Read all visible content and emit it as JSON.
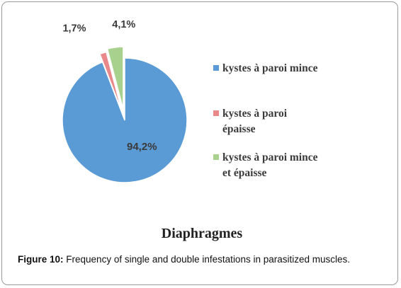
{
  "chart_data": {
    "type": "pie",
    "title": "Diaphragmes",
    "slices": [
      {
        "label": "kystes à paroi mince",
        "value": 94.2,
        "value_label": "94,2%",
        "color": "#5b9bd5"
      },
      {
        "label": "kystes à paroi épaisse",
        "value": 1.7,
        "value_label": "1,7%",
        "color": "#e8888a"
      },
      {
        "label": "kystes à paroi mince et épaisse",
        "value": 4.1,
        "value_label": "4,1%",
        "color": "#a9d18e"
      }
    ],
    "legend_lines": [
      [
        "kystes à paroi mince"
      ],
      [
        "kystes à paroi",
        "épaisse"
      ],
      [
        "kystes à paroi mince",
        "et épaisse"
      ]
    ],
    "legend_position": "right"
  },
  "caption": {
    "label": "Figure 10:",
    "text": "Frequency of single and double infestations in parasitized muscles."
  }
}
